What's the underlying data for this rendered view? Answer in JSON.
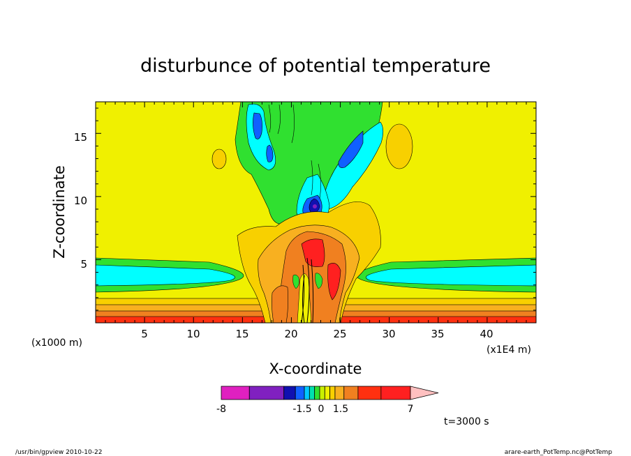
{
  "chart_data": {
    "type": "heatmap",
    "title": "disturbunce of potential temperature",
    "xlabel": "X-coordinate",
    "ylabel": "Z-coordinate",
    "x_unit_left": "(x1000 m)",
    "x_unit_right": "(x1E4 m)",
    "xlim": [
      0,
      45
    ],
    "ylim": [
      0,
      17.5
    ],
    "x_ticks": [
      "5",
      "10",
      "15",
      "20",
      "25",
      "30",
      "35",
      "40"
    ],
    "y_ticks": [
      "5",
      "10",
      "15"
    ],
    "colorbar": {
      "labels": [
        "-8",
        "-1.5",
        "0",
        "1.5",
        "7"
      ],
      "levels": [
        -8,
        -6,
        -4,
        -2,
        -1.5,
        -1,
        -0.5,
        0,
        0.5,
        1,
        1.5,
        2,
        4,
        6,
        7
      ],
      "colors": [
        "#e020c0",
        "#8020c0",
        "#1010b0",
        "#1060ff",
        "#00c8ff",
        "#00e0b0",
        "#30e030",
        "#c8f000",
        "#f0f000",
        "#f8d000",
        "#f8b020",
        "#f08020",
        "#ff3010",
        "#ff2020",
        "#f88080",
        "#ffc0c0"
      ]
    },
    "time_label": "t=3000 s",
    "footer_left": "/usr/bin/gpview  2010-10-22",
    "footer_right": "arare-earth_PotTemp.nc@PotTemp"
  }
}
